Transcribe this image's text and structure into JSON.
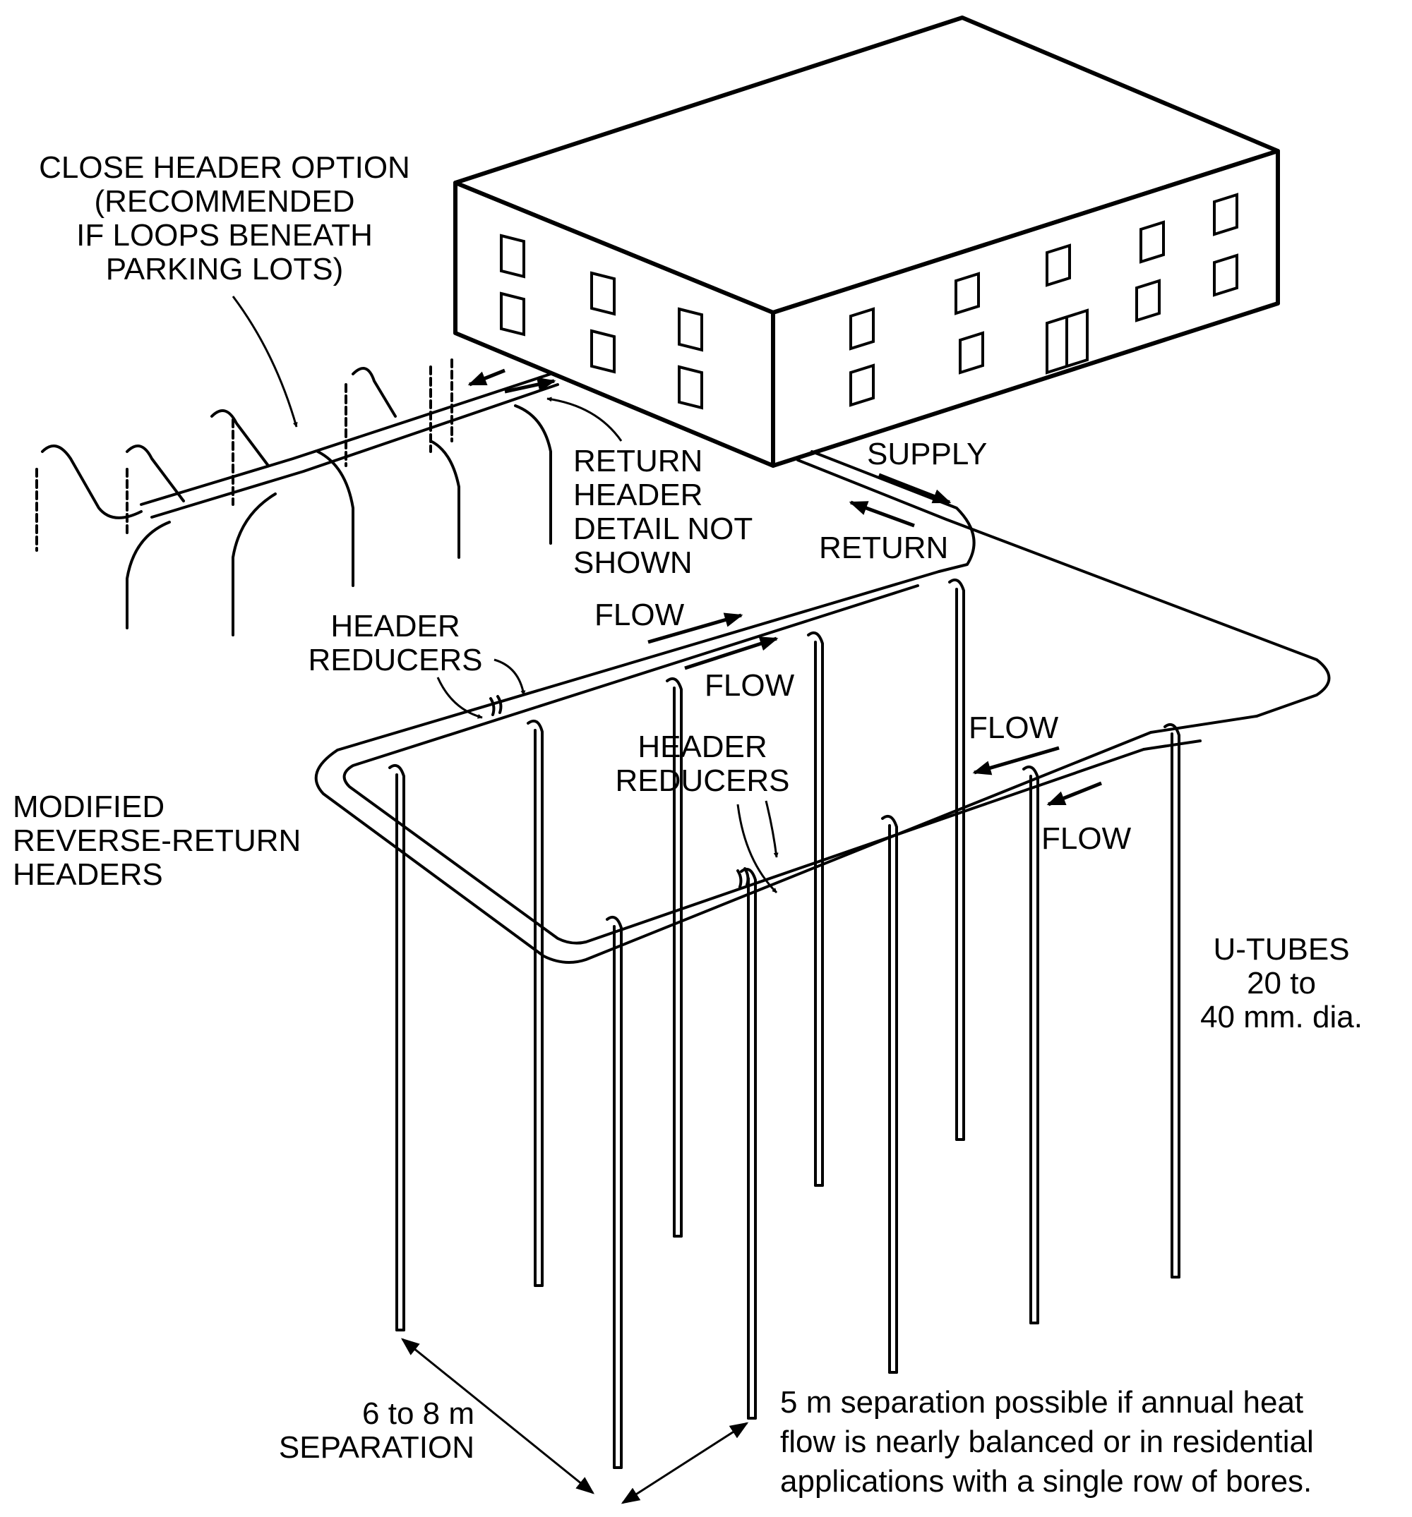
{
  "labels": {
    "close_header": [
      "CLOSE HEADER OPTION",
      "(RECOMMENDED",
      "IF LOOPS BENEATH",
      "PARKING LOTS)"
    ],
    "return_header_detail": [
      "RETURN",
      "HEADER",
      "DETAIL NOT",
      "SHOWN"
    ],
    "supply": "SUPPLY",
    "return": "RETURN",
    "flow_1": "FLOW",
    "flow_2": "FLOW",
    "flow_3": "FLOW",
    "flow_4": "FLOW",
    "header_reducers_1": [
      "HEADER",
      "REDUCERS"
    ],
    "header_reducers_2": [
      "HEADER",
      "REDUCERS"
    ],
    "modified_headers": [
      "MODIFIED",
      "REVERSE-RETURN",
      "HEADERS"
    ],
    "u_tubes": [
      "U-TUBES",
      "20 to",
      "40 mm. dia."
    ],
    "separation_6_8": [
      "6 to 8 m",
      "SEPARATION"
    ],
    "separation_5": [
      "5 m separation possible if annual heat",
      "flow is nearly balanced or in residential",
      "applications with a single row of bores."
    ]
  },
  "colors": {
    "ink": "#000000",
    "paper": "#ffffff"
  }
}
